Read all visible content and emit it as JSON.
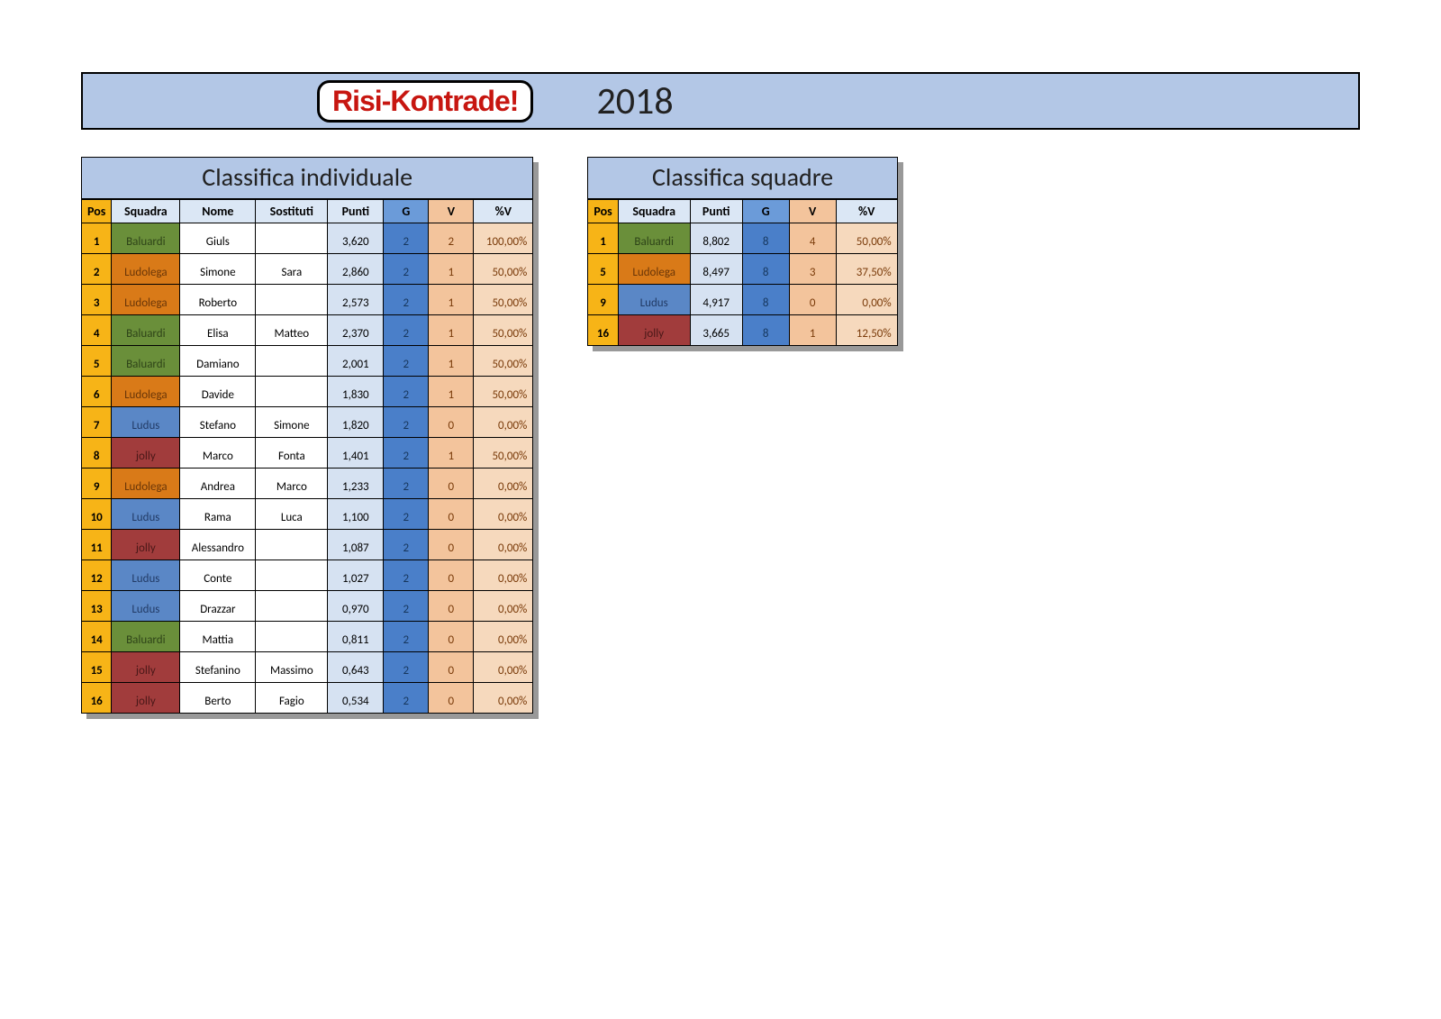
{
  "header": {
    "logo_text": "Risi-Kontrade!",
    "year": "2018"
  },
  "colors": {
    "pos_bg": "#f7b417",
    "punti_bg": "#d6e2f2",
    "g_bg": "#4a7fc9",
    "v_bg": "#f3c49c",
    "pct_bg": "#f6d9bd",
    "header_row_bg": "#dbe7f5",
    "title_bg": "#b3c7e6",
    "th_pos_bg": "#f7b417",
    "th_g_bg": "#6b9bd9",
    "th_v_bg": "#f3c49c",
    "squad_colors": {
      "Baluardi": "#6a8f3a",
      "Ludolega": "#d97a18",
      "Ludus": "#5a87c6",
      "jolly": "#a13c3c"
    },
    "squad_text": {
      "Baluardi": "#2e4418",
      "Ludolega": "#6a3608",
      "Ludus": "#223b66",
      "jolly": "#4a1818"
    }
  },
  "individual": {
    "title": "Classifica individuale",
    "columns": [
      "Pos",
      "Squadra",
      "Nome",
      "Sostituti",
      "Punti",
      "G",
      "V",
      "%V"
    ],
    "rows": [
      {
        "pos": "1",
        "squad": "Baluardi",
        "nome": "Giuls",
        "sost": "",
        "punti": "3,620",
        "g": "2",
        "v": "2",
        "pct": "100,00%"
      },
      {
        "pos": "2",
        "squad": "Ludolega",
        "nome": "Simone",
        "sost": "Sara",
        "punti": "2,860",
        "g": "2",
        "v": "1",
        "pct": "50,00%"
      },
      {
        "pos": "3",
        "squad": "Ludolega",
        "nome": "Roberto",
        "sost": "",
        "punti": "2,573",
        "g": "2",
        "v": "1",
        "pct": "50,00%"
      },
      {
        "pos": "4",
        "squad": "Baluardi",
        "nome": "Elisa",
        "sost": "Matteo",
        "punti": "2,370",
        "g": "2",
        "v": "1",
        "pct": "50,00%"
      },
      {
        "pos": "5",
        "squad": "Baluardi",
        "nome": "Damiano",
        "sost": "",
        "punti": "2,001",
        "g": "2",
        "v": "1",
        "pct": "50,00%"
      },
      {
        "pos": "6",
        "squad": "Ludolega",
        "nome": "Davide",
        "sost": "",
        "punti": "1,830",
        "g": "2",
        "v": "1",
        "pct": "50,00%"
      },
      {
        "pos": "7",
        "squad": "Ludus",
        "nome": "Stefano",
        "sost": "Simone",
        "punti": "1,820",
        "g": "2",
        "v": "0",
        "pct": "0,00%"
      },
      {
        "pos": "8",
        "squad": "jolly",
        "nome": "Marco",
        "sost": "Fonta",
        "punti": "1,401",
        "g": "2",
        "v": "1",
        "pct": "50,00%"
      },
      {
        "pos": "9",
        "squad": "Ludolega",
        "nome": "Andrea",
        "sost": "Marco",
        "punti": "1,233",
        "g": "2",
        "v": "0",
        "pct": "0,00%"
      },
      {
        "pos": "10",
        "squad": "Ludus",
        "nome": "Rama",
        "sost": "Luca",
        "punti": "1,100",
        "g": "2",
        "v": "0",
        "pct": "0,00%"
      },
      {
        "pos": "11",
        "squad": "jolly",
        "nome": "Alessandro",
        "sost": "",
        "punti": "1,087",
        "g": "2",
        "v": "0",
        "pct": "0,00%"
      },
      {
        "pos": "12",
        "squad": "Ludus",
        "nome": "Conte",
        "sost": "",
        "punti": "1,027",
        "g": "2",
        "v": "0",
        "pct": "0,00%"
      },
      {
        "pos": "13",
        "squad": "Ludus",
        "nome": "Drazzar",
        "sost": "",
        "punti": "0,970",
        "g": "2",
        "v": "0",
        "pct": "0,00%"
      },
      {
        "pos": "14",
        "squad": "Baluardi",
        "nome": "Mattia",
        "sost": "",
        "punti": "0,811",
        "g": "2",
        "v": "0",
        "pct": "0,00%"
      },
      {
        "pos": "15",
        "squad": "jolly",
        "nome": "Stefanino",
        "sost": "Massimo",
        "punti": "0,643",
        "g": "2",
        "v": "0",
        "pct": "0,00%"
      },
      {
        "pos": "16",
        "squad": "jolly",
        "nome": "Berto",
        "sost": "Fagio",
        "punti": "0,534",
        "g": "2",
        "v": "0",
        "pct": "0,00%"
      }
    ]
  },
  "teams": {
    "title": "Classifica squadre",
    "columns": [
      "Pos",
      "Squadra",
      "Punti",
      "G",
      "V",
      "%V"
    ],
    "rows": [
      {
        "pos": "1",
        "squad": "Baluardi",
        "punti": "8,802",
        "g": "8",
        "v": "4",
        "pct": "50,00%"
      },
      {
        "pos": "5",
        "squad": "Ludolega",
        "punti": "8,497",
        "g": "8",
        "v": "3",
        "pct": "37,50%"
      },
      {
        "pos": "9",
        "squad": "Ludus",
        "punti": "4,917",
        "g": "8",
        "v": "0",
        "pct": "0,00%"
      },
      {
        "pos": "16",
        "squad": "jolly",
        "punti": "3,665",
        "g": "8",
        "v": "1",
        "pct": "12,50%"
      }
    ]
  }
}
